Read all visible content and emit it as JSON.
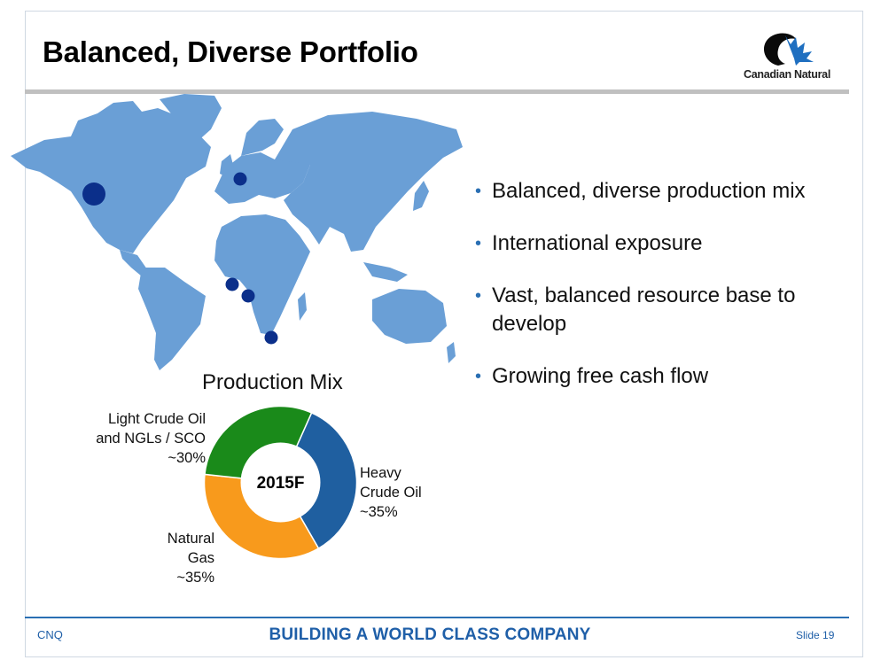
{
  "slide": {
    "title": "Balanced, Diverse Portfolio",
    "logo_text": "Canadian Natural",
    "bullets": [
      "Balanced, diverse production mix",
      "International exposure",
      "Vast, balanced resource base to develop",
      "Growing free cash flow"
    ],
    "colors": {
      "map_land": "#6a9fd6",
      "marker": "#0b2f8a",
      "accent": "#1f5fa8"
    },
    "map_icon": "world-map-icon",
    "footer": {
      "left": "CNQ",
      "center": "BUILDING A WORLD CLASS COMPANY",
      "right": "Slide 19"
    }
  },
  "chart_data": {
    "type": "pie",
    "title": "Production Mix",
    "center_label": "2015F",
    "donut": true,
    "slices": [
      {
        "label": "Heavy Crude Oil",
        "value_text": "~35%",
        "value": 35,
        "color": "#1f5fa0"
      },
      {
        "label": "Natural Gas",
        "value_text": "~35%",
        "value": 35,
        "color": "#f89a1c"
      },
      {
        "label": "Light Crude Oil and NGLs / SCO",
        "value_text": "~30%",
        "value": 30,
        "color": "#1a8a1a"
      }
    ]
  }
}
